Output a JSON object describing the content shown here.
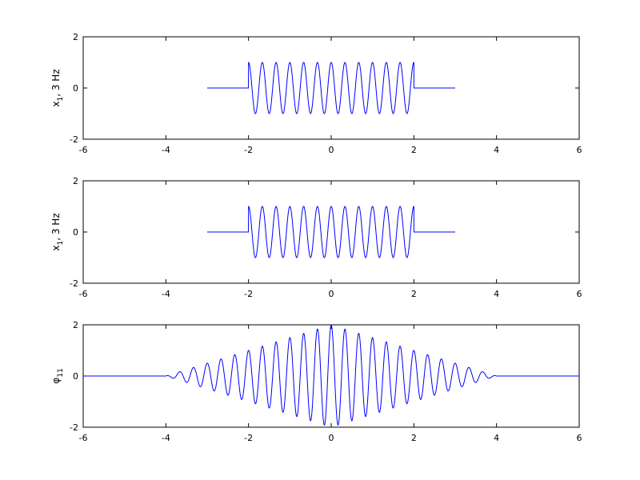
{
  "figure": {
    "background": "#ffffff"
  },
  "chart_data": [
    {
      "type": "line",
      "title": "",
      "xlabel": "",
      "ylabel": "x",
      "ylabel_sub": "1",
      "ylabel_suffix": ", 3 Hz",
      "xlim": [
        -6,
        6
      ],
      "ylim": [
        -2,
        2
      ],
      "xticks": [
        -6,
        -4,
        -2,
        0,
        2,
        4,
        6
      ],
      "yticks": [
        -2,
        0,
        2
      ],
      "grid": false,
      "line_color": "#0000ff",
      "series": [
        {
          "function": "gated_cosine",
          "x_start": -3,
          "x_end": 3,
          "gate_start": -2,
          "gate_end": 2,
          "frequency_hz": 3,
          "amplitude": 1
        }
      ]
    },
    {
      "type": "line",
      "title": "",
      "xlabel": "",
      "ylabel": "x",
      "ylabel_sub": "1",
      "ylabel_suffix": ", 3 Hz",
      "xlim": [
        -6,
        6
      ],
      "ylim": [
        -2,
        2
      ],
      "xticks": [
        -6,
        -4,
        -2,
        0,
        2,
        4,
        6
      ],
      "yticks": [
        -2,
        0,
        2
      ],
      "grid": false,
      "line_color": "#0000ff",
      "series": [
        {
          "function": "gated_cosine",
          "x_start": -3,
          "x_end": 3,
          "gate_start": -2,
          "gate_end": 2,
          "frequency_hz": 3,
          "amplitude": 1
        }
      ]
    },
    {
      "type": "line",
      "title": "",
      "xlabel": "",
      "ylabel": "φ",
      "ylabel_sub": "11",
      "ylabel_suffix": "",
      "xlim": [
        -6,
        6
      ],
      "ylim": [
        -2,
        2
      ],
      "xticks": [
        -6,
        -4,
        -2,
        0,
        2,
        4,
        6
      ],
      "yticks": [
        -2,
        0,
        2
      ],
      "grid": false,
      "line_color": "#0000ff",
      "series": [
        {
          "function": "autocorrelation_triangle_cosine",
          "x_start": -6,
          "x_end": 6,
          "support_start": -4,
          "support_end": 4,
          "frequency_hz": 3,
          "peak": 2
        }
      ]
    }
  ]
}
